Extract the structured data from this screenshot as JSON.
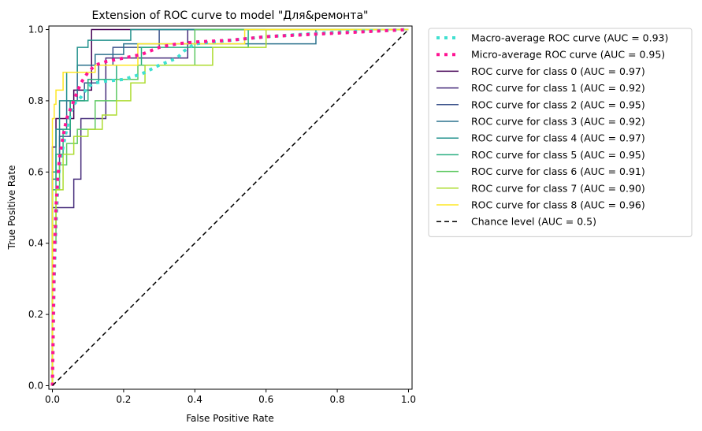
{
  "chart_data": {
    "type": "line",
    "title": "Extension of ROC curve to model \"Для&ремонта\"",
    "xlabel": "False Positive Rate",
    "ylabel": "True Positive Rate",
    "xlim": [
      -0.01,
      1.01
    ],
    "ylim": [
      -0.01,
      1.01
    ],
    "xticks": [
      "0.0",
      "0.2",
      "0.4",
      "0.6",
      "0.8",
      "1.0"
    ],
    "yticks": [
      "0.0",
      "0.2",
      "0.4",
      "0.6",
      "0.8",
      "1.0"
    ],
    "grid": false,
    "legend_position": "outside-right",
    "series": [
      {
        "name": "Macro-average ROC curve (AUC = 0.93)",
        "color": "#40e0d0",
        "style": "dotted-thick",
        "x": [
          0,
          0.005,
          0.01,
          0.015,
          0.02,
          0.03,
          0.04,
          0.05,
          0.06,
          0.08,
          0.1,
          0.12,
          0.15,
          0.2,
          0.25,
          0.3,
          0.35,
          0.37,
          0.4,
          0.55,
          0.6,
          0.75,
          0.85,
          1.0
        ],
        "y": [
          0,
          0.3,
          0.45,
          0.55,
          0.62,
          0.67,
          0.72,
          0.76,
          0.79,
          0.81,
          0.84,
          0.85,
          0.855,
          0.86,
          0.875,
          0.9,
          0.92,
          0.94,
          0.96,
          0.975,
          0.98,
          0.99,
          0.995,
          1.0
        ]
      },
      {
        "name": "Micro-average ROC curve (AUC = 0.95)",
        "color": "#ff1493",
        "style": "dotted-thick",
        "x": [
          0,
          0.005,
          0.01,
          0.015,
          0.02,
          0.03,
          0.04,
          0.06,
          0.08,
          0.1,
          0.12,
          0.15,
          0.2,
          0.25,
          0.3,
          0.35,
          0.4,
          0.5,
          0.6,
          0.7,
          0.8,
          0.9,
          1.0
        ],
        "y": [
          0,
          0.35,
          0.5,
          0.58,
          0.64,
          0.7,
          0.75,
          0.8,
          0.85,
          0.88,
          0.9,
          0.91,
          0.92,
          0.93,
          0.95,
          0.96,
          0.965,
          0.97,
          0.98,
          0.985,
          0.99,
          0.995,
          1.0
        ]
      },
      {
        "name": "ROC curve for class 0 (AUC = 0.97)",
        "color": "#440154",
        "style": "solid",
        "x": [
          0,
          0,
          0.01,
          0.01,
          0.06,
          0.06,
          0.11,
          0.11,
          1.0
        ],
        "y": [
          0,
          0.67,
          0.67,
          0.75,
          0.75,
          0.83,
          0.83,
          1.0,
          1.0
        ]
      },
      {
        "name": "ROC curve for class 1 (AUC = 0.92)",
        "color": "#472d7b",
        "style": "solid",
        "x": [
          0,
          0,
          0.03,
          0.03,
          0.06,
          0.06,
          0.08,
          0.08,
          0.15,
          0.15,
          0.38,
          0.38,
          1.0
        ],
        "y": [
          0,
          0.5,
          0.5,
          0.5,
          0.5,
          0.58,
          0.58,
          0.75,
          0.75,
          0.92,
          0.92,
          1.0,
          1.0
        ]
      },
      {
        "name": "ROC curve for class 2 (AUC = 0.95)",
        "color": "#3b528b",
        "style": "solid",
        "x": [
          0,
          0,
          0.02,
          0.02,
          0.05,
          0.05,
          0.09,
          0.09,
          0.13,
          0.13,
          0.17,
          0.17,
          0.3,
          0.3,
          1.0
        ],
        "y": [
          0,
          0.6,
          0.6,
          0.7,
          0.7,
          0.8,
          0.8,
          0.85,
          0.85,
          0.9,
          0.9,
          0.95,
          0.95,
          1.0,
          1.0
        ]
      },
      {
        "name": "ROC curve for class 3 (AUC = 0.92)",
        "color": "#2c728e",
        "style": "solid",
        "x": [
          0,
          0,
          0.01,
          0.01,
          0.02,
          0.02,
          0.04,
          0.04,
          0.07,
          0.07,
          0.12,
          0.12,
          0.2,
          0.2,
          0.74,
          0.74,
          1.0
        ],
        "y": [
          0,
          0.58,
          0.58,
          0.65,
          0.65,
          0.72,
          0.72,
          0.8,
          0.8,
          0.9,
          0.9,
          0.93,
          0.93,
          0.96,
          0.96,
          1.0,
          1.0
        ]
      },
      {
        "name": "ROC curve for class 4 (AUC = 0.97)",
        "color": "#21918c",
        "style": "solid",
        "x": [
          0,
          0,
          0.01,
          0.01,
          0.02,
          0.02,
          0.04,
          0.04,
          0.07,
          0.07,
          0.1,
          0.1,
          0.22,
          0.22,
          1.0
        ],
        "y": [
          0,
          0.6,
          0.6,
          0.72,
          0.72,
          0.8,
          0.8,
          0.88,
          0.88,
          0.95,
          0.95,
          0.97,
          0.97,
          1.0,
          1.0
        ]
      },
      {
        "name": "ROC curve for class 5 (AUC = 0.95)",
        "color": "#28ae80",
        "style": "solid",
        "x": [
          0,
          0,
          0.01,
          0.01,
          0.03,
          0.03,
          0.05,
          0.05,
          0.1,
          0.1,
          0.18,
          0.18,
          0.25,
          0.25,
          0.55,
          0.55,
          1.0
        ],
        "y": [
          0,
          0.55,
          0.55,
          0.65,
          0.65,
          0.72,
          0.72,
          0.8,
          0.8,
          0.86,
          0.86,
          0.9,
          0.9,
          0.95,
          0.95,
          1.0,
          1.0
        ]
      },
      {
        "name": "ROC curve for class 6 (AUC = 0.91)",
        "color": "#5ec962",
        "style": "solid",
        "x": [
          0,
          0,
          0.01,
          0.01,
          0.02,
          0.02,
          0.04,
          0.04,
          0.07,
          0.07,
          0.12,
          0.12,
          0.18,
          0.18,
          0.24,
          0.24,
          0.4,
          0.4,
          1.0
        ],
        "y": [
          0,
          0.4,
          0.4,
          0.55,
          0.55,
          0.62,
          0.62,
          0.68,
          0.68,
          0.72,
          0.72,
          0.8,
          0.8,
          0.86,
          0.86,
          0.9,
          0.9,
          1.0,
          1.0
        ]
      },
      {
        "name": "ROC curve for class 7 (AUC = 0.90)",
        "color": "#addc30",
        "style": "solid",
        "x": [
          0,
          0,
          0.01,
          0.01,
          0.03,
          0.03,
          0.06,
          0.06,
          0.1,
          0.1,
          0.14,
          0.14,
          0.18,
          0.18,
          0.22,
          0.22,
          0.26,
          0.26,
          0.45,
          0.45,
          0.6,
          0.6,
          1.0
        ],
        "y": [
          0,
          0.45,
          0.45,
          0.55,
          0.55,
          0.65,
          0.65,
          0.7,
          0.7,
          0.72,
          0.72,
          0.76,
          0.76,
          0.8,
          0.8,
          0.85,
          0.85,
          0.9,
          0.9,
          0.95,
          0.95,
          1.0,
          1.0
        ]
      },
      {
        "name": "ROC curve for class 8 (AUC = 0.96)",
        "color": "#fde725",
        "style": "solid",
        "x": [
          0,
          0,
          0.005,
          0.005,
          0.01,
          0.01,
          0.03,
          0.03,
          0.12,
          0.12,
          0.24,
          0.24,
          0.54,
          0.54,
          1.0
        ],
        "y": [
          0,
          0.75,
          0.75,
          0.79,
          0.79,
          0.83,
          0.83,
          0.88,
          0.88,
          0.9,
          0.9,
          0.96,
          0.96,
          1.0,
          1.0
        ]
      },
      {
        "name": "Chance level (AUC = 0.5)",
        "color": "#000000",
        "style": "dashed",
        "x": [
          0,
          1
        ],
        "y": [
          0,
          1
        ]
      }
    ]
  }
}
